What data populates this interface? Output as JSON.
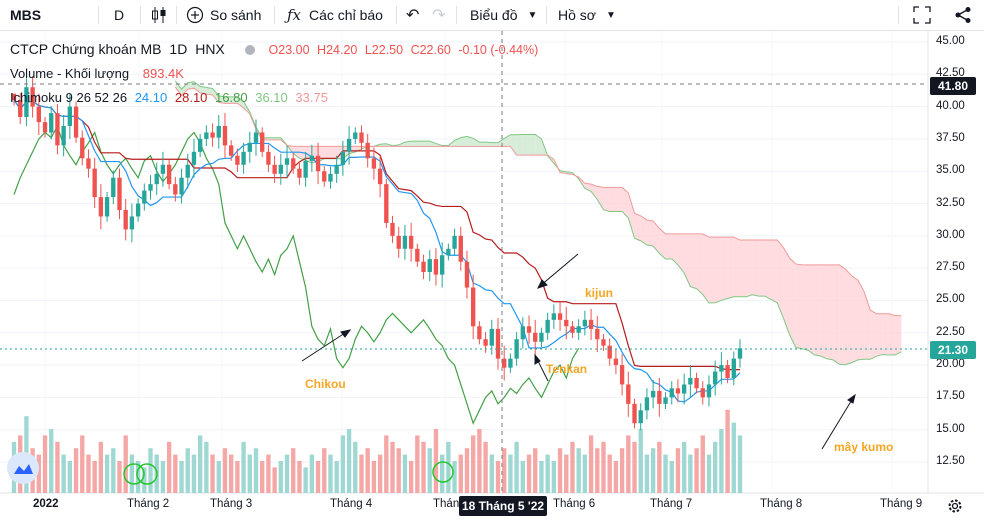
{
  "toolbar": {
    "symbol": "MBS",
    "interval": "D",
    "compare_label": "So sánh",
    "indicators_label": "Các chỉ báo",
    "chart_type_label": "Biểu đồ",
    "profile_label": "Hồ sơ"
  },
  "legend": {
    "name": "CTCP Chứng khoán MB",
    "interval": "1D",
    "exchange": "HNX",
    "open": "O23.00",
    "high": "H24.20",
    "low": "L22.50",
    "close": "C22.60",
    "change": "-0.10 (-0.44%)",
    "volume_label": "Volume - Khối lượng",
    "volume_value": "893.4K",
    "ichimoku_label": "Ichimoku 9 26 52 26",
    "tenkan_value": "24.10",
    "kijun_value": "28.10",
    "chikou_value": "16.80",
    "span_a_value": "36.10",
    "span_b_value": "33.75"
  },
  "annotations": {
    "chikou": "Chikou",
    "kijun": "kijun",
    "tenkan": "Tenkan",
    "kumo": "mây kumo"
  },
  "price_tags": {
    "crosshair": "41.80",
    "last": "21.30"
  },
  "crosshair_date": "18 Tháng 5 '22",
  "colors": {
    "up": "#26a69a",
    "down": "#ef5350",
    "tenkan": "#2196f3",
    "kijun": "#b71c1c",
    "chikou": "#43a047",
    "cloud_bull": "#a5d6a7",
    "cloud_bear": "#ef9a9a",
    "label": "#f5a623"
  },
  "chart_data": {
    "type": "candlestick",
    "y_axis": {
      "ticks": [
        "45.00",
        "42.50",
        "40.00",
        "37.50",
        "35.00",
        "32.50",
        "30.00",
        "27.50",
        "25.00",
        "22.50",
        "20.00",
        "17.50",
        "15.00",
        "12.50"
      ]
    },
    "x_axis": {
      "ticks": [
        "2022",
        "Tháng 2",
        "Tháng 3",
        "Tháng 4",
        "Tháng",
        "Tháng 6",
        "Tháng 7",
        "Tháng 8",
        "Tháng 9"
      ]
    },
    "close": [
      40.5,
      39.2,
      41.5,
      40.0,
      38.8,
      38.0,
      39.5,
      37.0,
      38.5,
      40.0,
      37.6,
      36.0,
      35.2,
      33.0,
      31.5,
      33.0,
      34.5,
      32.0,
      30.5,
      31.5,
      32.5,
      33.5,
      34.0,
      34.8,
      35.5,
      34.0,
      33.2,
      34.5,
      35.5,
      36.5,
      37.5,
      38.0,
      37.6,
      38.5,
      37.0,
      36.2,
      35.5,
      36.5,
      37.2,
      38.0,
      36.5,
      35.5,
      34.8,
      35.5,
      36.0,
      35.2,
      34.5,
      35.8,
      36.2,
      35.0,
      34.2,
      34.8,
      35.5,
      36.5,
      37.5,
      38.0,
      37.2,
      36.0,
      35.2,
      34.0,
      31.0,
      30.0,
      29.0,
      30.0,
      29.0,
      28.0,
      27.2,
      28.2,
      27.0,
      28.5,
      29.0,
      30.0,
      28.0,
      26.0,
      23.0,
      22.0,
      21.5,
      22.8,
      20.5,
      19.8,
      20.5,
      22.0,
      23.0,
      22.5,
      21.8,
      22.5,
      23.5,
      24.0,
      23.5,
      23.0,
      22.5,
      23.0,
      23.5,
      22.8,
      22.0,
      21.5,
      20.5,
      20.0,
      18.5,
      17.0,
      15.5,
      16.5,
      17.5,
      18.0,
      17.0,
      17.5,
      18.2,
      17.8,
      18.5,
      19.0,
      18.2,
      17.5,
      18.5,
      19.5,
      20.0,
      19.0,
      20.5,
      21.3
    ],
    "volume": [
      0.8,
      0.9,
      1.2,
      0.7,
      0.6,
      0.9,
      1.0,
      0.8,
      0.6,
      0.5,
      0.7,
      0.9,
      0.6,
      0.5,
      0.8,
      0.6,
      0.7,
      0.5,
      0.9,
      0.6,
      0.5,
      0.4,
      0.7,
      0.6,
      0.5,
      0.8,
      0.6,
      0.5,
      0.7,
      0.6,
      0.9,
      0.8,
      0.6,
      0.5,
      0.7,
      0.6,
      0.5,
      0.8,
      0.6,
      0.7,
      0.5,
      0.6,
      0.4,
      0.5,
      0.6,
      0.7,
      0.5,
      0.4,
      0.6,
      0.5,
      0.7,
      0.6,
      0.5,
      0.9,
      1.0,
      0.8,
      0.6,
      0.7,
      0.5,
      0.6,
      0.9,
      0.8,
      0.7,
      0.6,
      0.5,
      0.9,
      0.8,
      0.7,
      1.0,
      0.6,
      0.8,
      0.5,
      0.6,
      0.7,
      0.9,
      1.0,
      0.8,
      0.6,
      0.5,
      0.7,
      0.6,
      0.8,
      0.5,
      0.6,
      0.7,
      0.5,
      0.6,
      0.5,
      0.7,
      0.6,
      0.8,
      0.7,
      0.6,
      0.9,
      0.7,
      0.8,
      0.6,
      0.5,
      0.7,
      0.9,
      0.8,
      1.0,
      0.6,
      0.7,
      0.8,
      0.6,
      0.5,
      0.7,
      0.8,
      0.6,
      0.7,
      0.9,
      0.6,
      0.8,
      1.0,
      1.3,
      1.1,
      0.9
    ],
    "crosshair_value": 41.8,
    "last_value": 21.3
  }
}
